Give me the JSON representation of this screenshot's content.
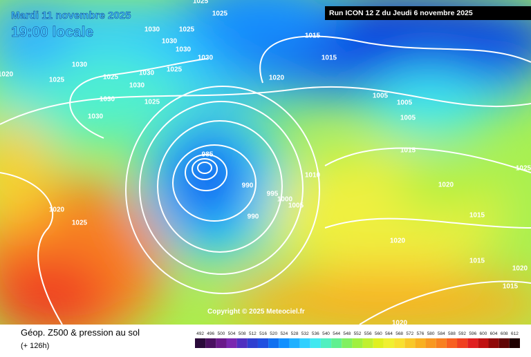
{
  "header": {
    "date": "Mardi 11 novembre 2025",
    "time": "19:00 locale",
    "run": "Run ICON 12 Z du Jeudi 6 novembre 2025",
    "copyright": "Copyright © 2025 Meteociel.fr"
  },
  "footer": {
    "title": "Géop. Z500 & pression au sol",
    "lead": "(+ 126h)"
  },
  "isobar_labels": [
    "1025",
    "1025",
    "1030",
    "1025",
    "1030",
    "1030",
    "1030",
    "1030",
    "1025",
    "1025",
    "1030",
    "1025",
    "1030",
    "1030",
    "1025",
    "1030",
    "1020",
    "1015",
    "1015",
    "1020",
    "1005",
    "1005",
    "1005",
    "1015",
    "985",
    "990",
    "995",
    "1000",
    "1005",
    "1010",
    "990",
    "1020",
    "1015",
    "1020",
    "1015",
    "1020",
    "1015",
    "1025",
    "1020",
    "1020",
    "1025"
  ],
  "legend": {
    "values": [
      "492",
      "496",
      "500",
      "504",
      "508",
      "512",
      "516",
      "520",
      "524",
      "528",
      "532",
      "536",
      "540",
      "544",
      "548",
      "552",
      "556",
      "560",
      "564",
      "568",
      "572",
      "576",
      "580",
      "584",
      "588",
      "592",
      "596",
      "600",
      "604",
      "608",
      "612"
    ],
    "colors": [
      "#2a0a3a",
      "#4a1060",
      "#6a1a8a",
      "#7a28b0",
      "#5030c0",
      "#3040d0",
      "#2050e0",
      "#1070f0",
      "#1090ff",
      "#20b0ff",
      "#30d0ff",
      "#40e8f0",
      "#50f0c0",
      "#60f090",
      "#80f060",
      "#a0f040",
      "#c0f030",
      "#e0f020",
      "#f0f030",
      "#f8e030",
      "#f8c828",
      "#f8b020",
      "#f89820",
      "#f88020",
      "#f86020",
      "#f04020",
      "#e02020",
      "#c01010",
      "#900808",
      "#600404",
      "#200000"
    ]
  }
}
